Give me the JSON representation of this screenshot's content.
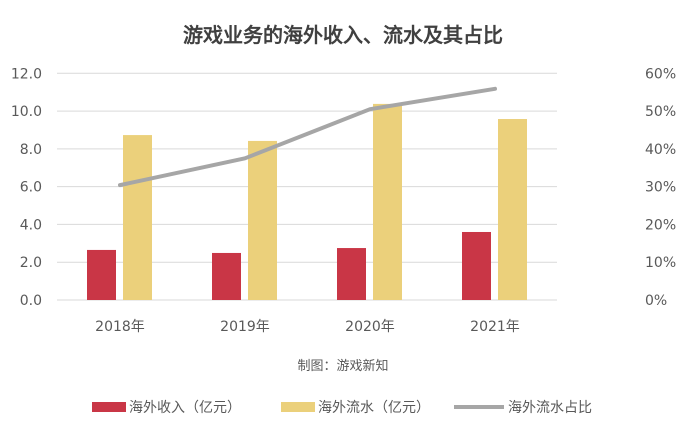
{
  "chart_data": {
    "type": "bar+line",
    "title": "游戏业务的海外收入、流水及其占比",
    "source_note": "制图：游戏新知",
    "categories": [
      "2018年",
      "2019年",
      "2020年",
      "2021年"
    ],
    "series": [
      {
        "name": "海外收入（亿元）",
        "type": "bar",
        "axis": "left",
        "color": "#C93646",
        "values": [
          2.65,
          2.49,
          2.75,
          3.6
        ]
      },
      {
        "name": "海外流水（亿元）",
        "type": "bar",
        "axis": "left",
        "color": "#EBD07B",
        "values": [
          8.73,
          8.42,
          10.38,
          9.58
        ]
      },
      {
        "name": "海外流水占比",
        "type": "line",
        "axis": "right",
        "color": "#A6A6A6",
        "values": [
          30.4,
          37.5,
          50.5,
          55.9
        ]
      }
    ],
    "y_left": {
      "range": [
        0,
        12
      ],
      "ticks": [
        "0.0",
        "2.0",
        "4.0",
        "6.0",
        "8.0",
        "10.0",
        "12.0"
      ]
    },
    "y_right": {
      "range": [
        0,
        60
      ],
      "unit": "%",
      "ticks": [
        "0%",
        "10%",
        "20%",
        "30%",
        "40%",
        "50%",
        "60%"
      ]
    },
    "grid": true,
    "legend": "bottom"
  }
}
